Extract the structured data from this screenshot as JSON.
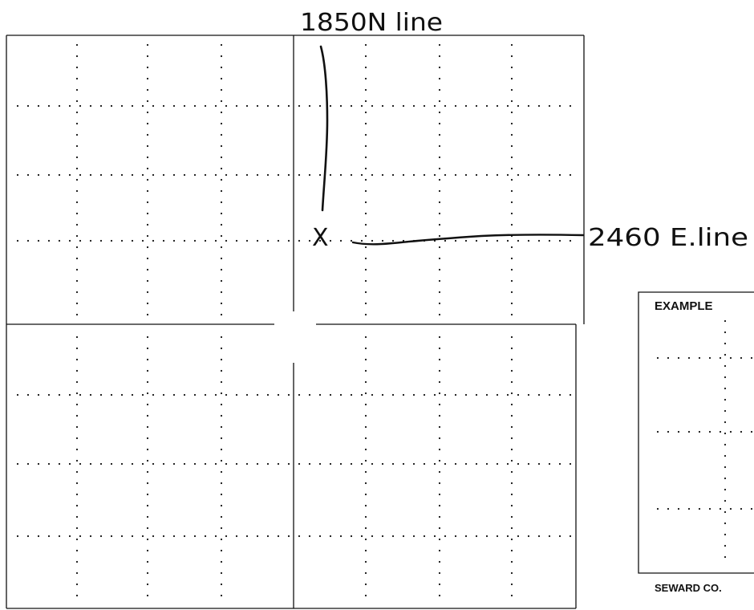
{
  "annotations": {
    "north_line": "1850N line",
    "east_line": "2460 E.line",
    "well_mark": "X"
  },
  "example_inset": {
    "title": "EXAMPLE",
    "county": "SEWARD CO."
  },
  "colors": {
    "ink": "#111111",
    "background": "#ffffff"
  }
}
